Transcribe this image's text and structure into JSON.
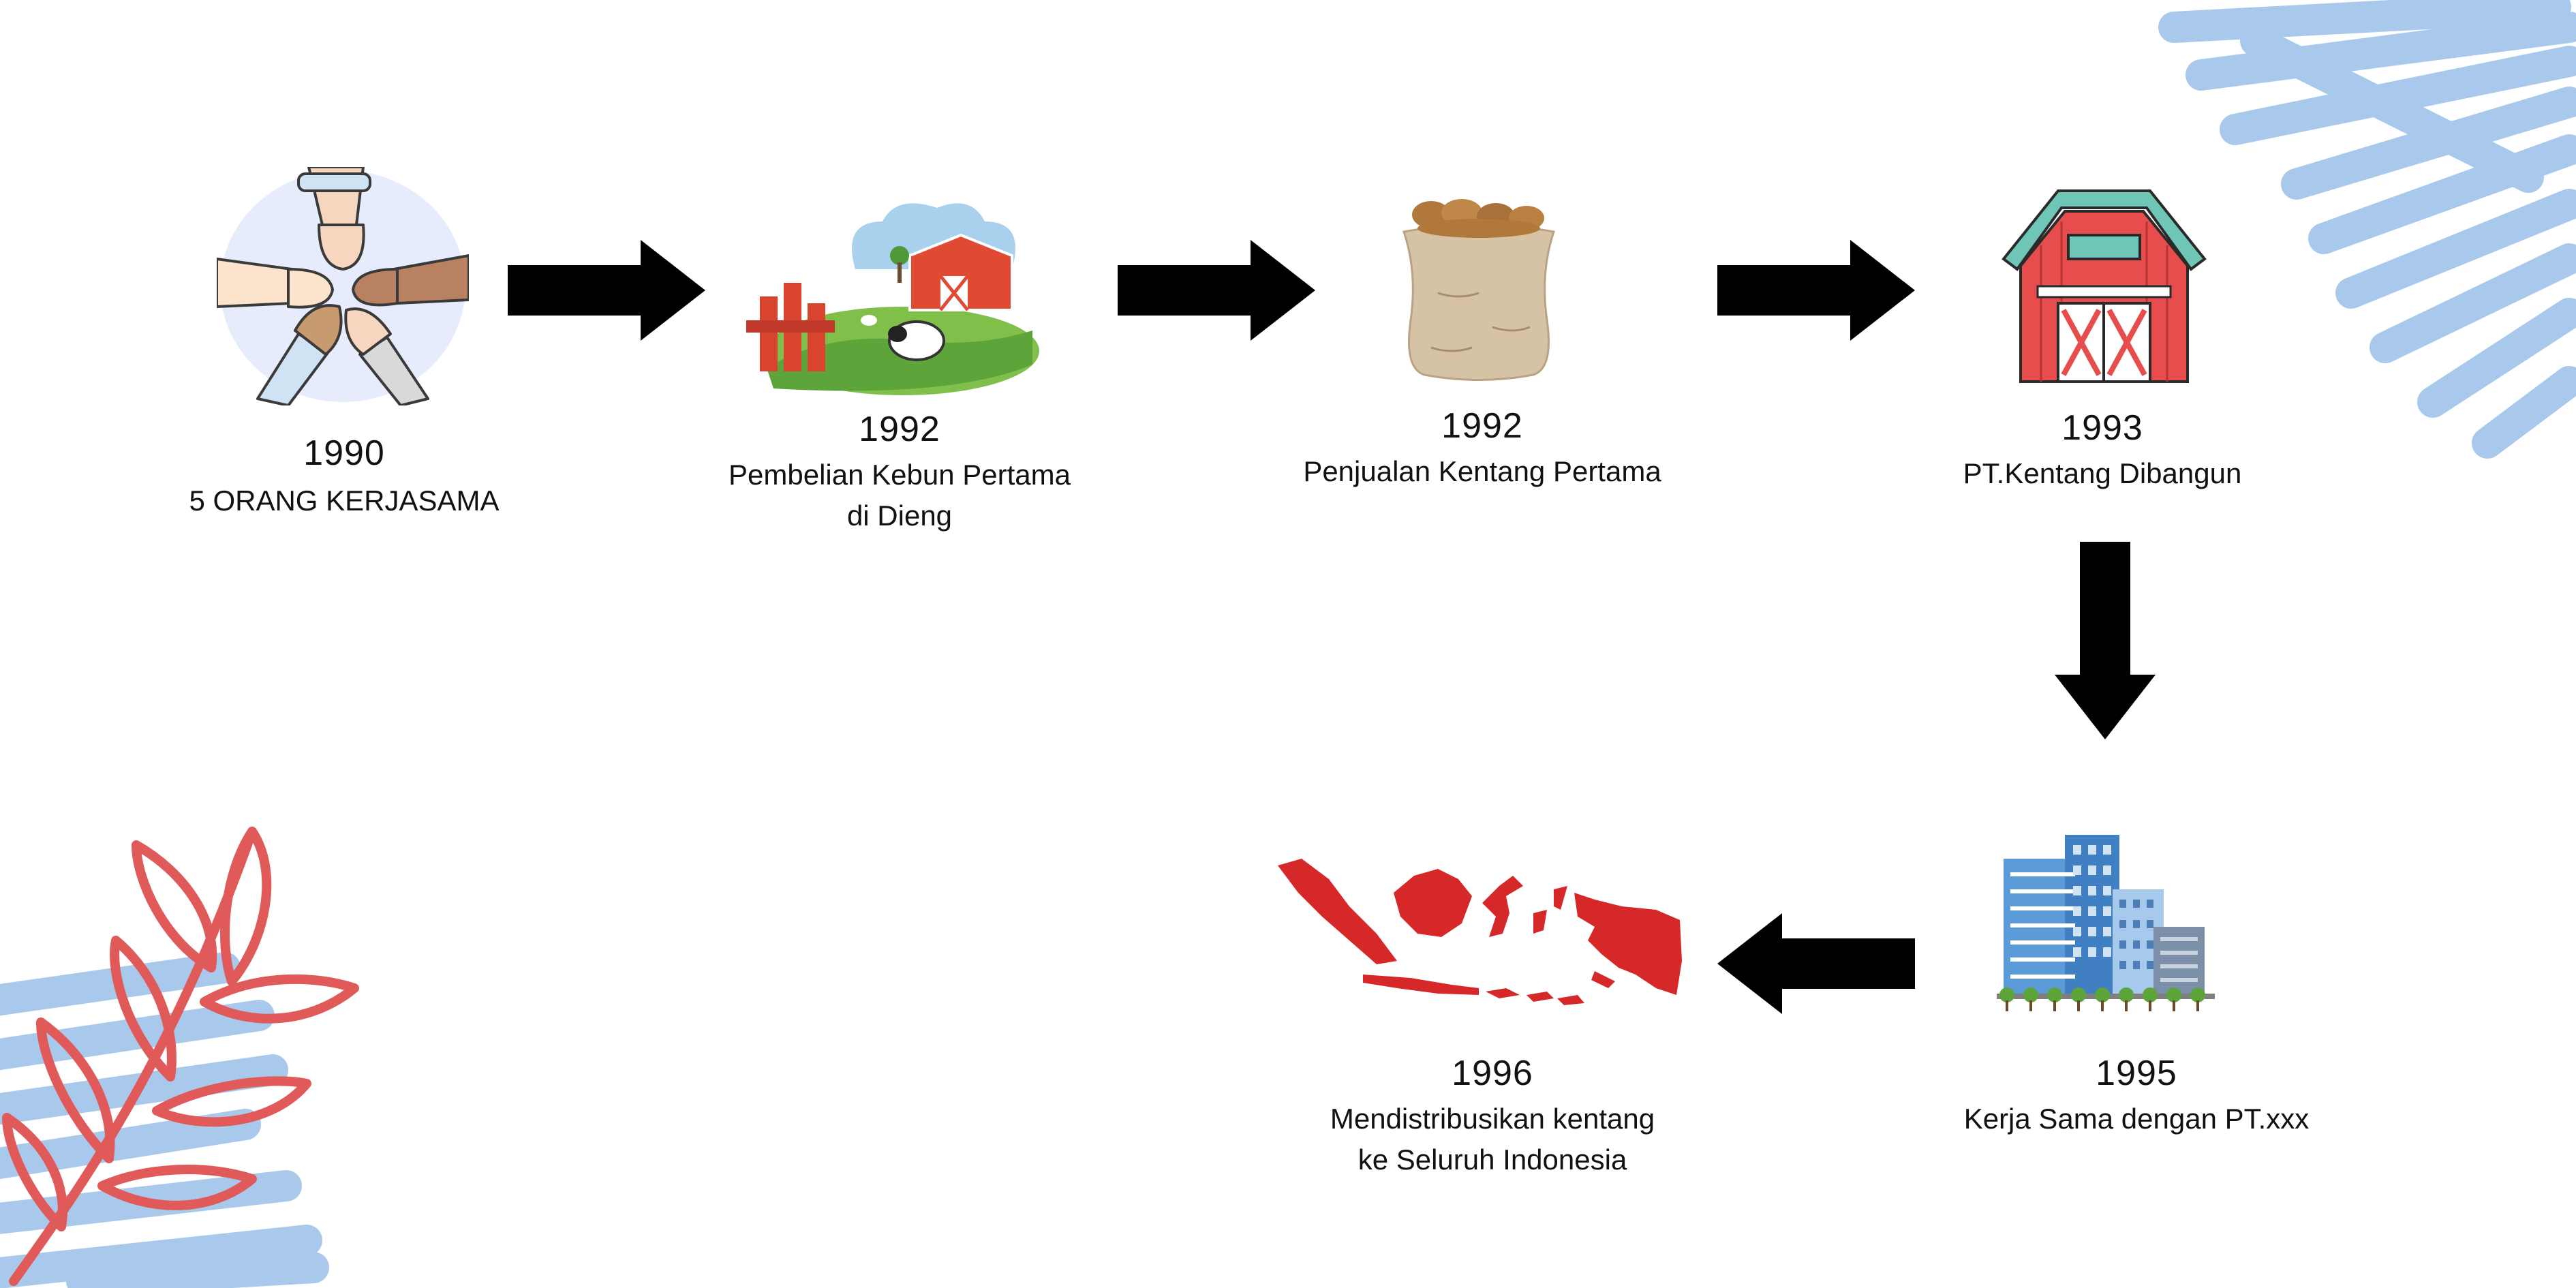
{
  "timeline": [
    {
      "year": "1990",
      "desc": "5 ORANG KERJASAMA",
      "icon": "fist-bump-icon"
    },
    {
      "year": "1992",
      "desc_line1": "Pembelian Kebun Pertama",
      "desc_line2": "di Dieng",
      "icon": "farm-icon"
    },
    {
      "year": "1992",
      "desc": "Penjualan Kentang Pertama",
      "icon": "potato-sack-icon"
    },
    {
      "year": "1993",
      "desc": "PT.Kentang Dibangun",
      "icon": "barn-icon"
    },
    {
      "year": "1995",
      "desc": "Kerja Sama dengan PT.xxx",
      "icon": "office-buildings-icon"
    },
    {
      "year": "1996",
      "desc_line1": "Mendistribusikan kentang",
      "desc_line2": "ke Seluruh Indonesia",
      "icon": "indonesia-map-icon"
    }
  ],
  "colors": {
    "arrow": "#000000",
    "accent_blue": "#a9c9ec",
    "accent_red": "#e05a5a"
  }
}
